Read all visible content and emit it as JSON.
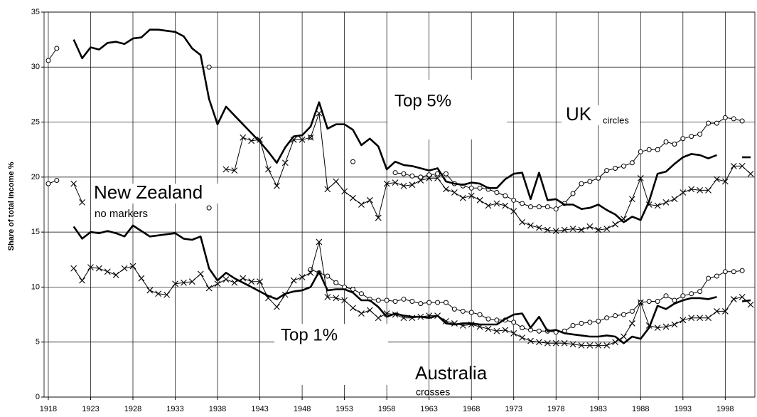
{
  "chart_data": {
    "type": "line",
    "y_label": "Share of total income %",
    "xlim": [
      1917.5,
      2001.5
    ],
    "xticks": [
      1918,
      1923,
      1928,
      1933,
      1938,
      1943,
      1948,
      1953,
      1958,
      1963,
      1968,
      1973,
      1978,
      1983,
      1988,
      1993,
      1998
    ],
    "ylim": [
      0,
      35
    ],
    "yticks": [
      0,
      5,
      10,
      15,
      20,
      25,
      30,
      35
    ],
    "grid": true,
    "annotations": [
      "Top 5%",
      "UK",
      "circles",
      "New Zealand",
      "no markers",
      "Top 1%",
      "Australia",
      "crosses"
    ],
    "series": [
      {
        "color": "#000000",
        "marker": "circle",
        "x": [
          1918,
          1919,
          1920,
          1937,
          1938,
          1949,
          1950,
          1954,
          1955,
          1959,
          1960,
          1961,
          1962,
          1963,
          1964,
          1965,
          1966,
          1967,
          1968,
          1969,
          1970,
          1971,
          1972,
          1973,
          1974,
          1975,
          1976,
          1977,
          1978,
          1979,
          1980,
          1981,
          1982,
          1983,
          1984,
          1985,
          1986,
          1987,
          1988,
          1989,
          1990,
          1991,
          1992,
          1993,
          1994,
          1995,
          1996,
          1997,
          1998,
          1999,
          2000
        ],
        "values": [
          30.6,
          31.7,
          null,
          30.0,
          null,
          23.6,
          null,
          21.4,
          null,
          20.4,
          20.3,
          20.1,
          20.0,
          20.2,
          20.3,
          20.3,
          19.4,
          19.2,
          19.0,
          19.0,
          18.9,
          18.6,
          18.3,
          17.9,
          17.6,
          17.3,
          17.3,
          17.3,
          17.1,
          17.6,
          18.5,
          19.4,
          19.6,
          19.9,
          20.6,
          20.8,
          21.0,
          21.3,
          22.3,
          22.5,
          22.5,
          23.2,
          23.0,
          23.5,
          23.7,
          23.9,
          24.9,
          24.9,
          25.4,
          25.3,
          25.1
        ]
      },
      {
        "color": "#000000",
        "marker": "circle",
        "x": [
          1918,
          1919,
          1920,
          1937,
          1938,
          1949,
          1950,
          1951,
          1952,
          1953,
          1954,
          1955,
          1956,
          1957,
          1958,
          1959,
          1960,
          1961,
          1962,
          1963,
          1964,
          1965,
          1966,
          1967,
          1968,
          1969,
          1970,
          1971,
          1972,
          1973,
          1974,
          1975,
          1976,
          1977,
          1978,
          1979,
          1980,
          1981,
          1982,
          1983,
          1984,
          1985,
          1986,
          1987,
          1988,
          1989,
          1990,
          1991,
          1992,
          1993,
          1994,
          1995,
          1996,
          1997,
          1998,
          1999,
          2000
        ],
        "values": [
          19.4,
          19.7,
          null,
          17.2,
          null,
          11.6,
          11.3,
          11.0,
          10.4,
          10.0,
          9.8,
          9.4,
          8.9,
          8.8,
          8.8,
          8.7,
          8.9,
          8.7,
          8.5,
          8.6,
          8.6,
          8.6,
          8.0,
          7.8,
          7.7,
          7.5,
          7.1,
          7.0,
          7.0,
          6.8,
          6.3,
          6.1,
          6.0,
          6.0,
          5.9,
          6.0,
          6.5,
          6.7,
          6.8,
          6.9,
          7.2,
          7.4,
          7.5,
          7.8,
          8.6,
          8.7,
          8.7,
          9.2,
          8.8,
          9.2,
          9.4,
          9.6,
          10.8,
          11.0,
          11.4,
          11.4,
          11.5
        ]
      },
      {
        "color": "#000000",
        "marker": "none",
        "x": [
          1921,
          1922,
          1923,
          1924,
          1925,
          1926,
          1927,
          1928,
          1929,
          1930,
          1931,
          1932,
          1933,
          1934,
          1935,
          1936,
          1937,
          1938,
          1939,
          1940,
          1941,
          1942,
          1943,
          1944,
          1945,
          1946,
          1947,
          1948,
          1949,
          1950,
          1951,
          1952,
          1953,
          1954,
          1955,
          1956,
          1957,
          1958,
          1959,
          1960,
          1961,
          1962,
          1963,
          1964,
          1965,
          1966,
          1967,
          1968,
          1969,
          1970,
          1971,
          1972,
          1973,
          1974,
          1975,
          1976,
          1977,
          1978,
          1979,
          1980,
          1981,
          1982,
          1983,
          1984,
          1985,
          1986,
          1987,
          1988,
          1989,
          1990,
          1991,
          1992,
          1993,
          1994,
          1995,
          1996,
          1997,
          1998,
          2000,
          2001
        ],
        "values": [
          32.5,
          30.8,
          31.8,
          31.6,
          32.2,
          32.3,
          32.1,
          32.6,
          32.7,
          33.4,
          33.4,
          33.3,
          33.2,
          32.8,
          31.7,
          31.1,
          27.1,
          24.8,
          26.4,
          25.6,
          24.8,
          24.0,
          23.2,
          22.3,
          21.3,
          22.7,
          23.7,
          23.8,
          24.6,
          26.8,
          24.4,
          24.8,
          24.8,
          24.3,
          22.9,
          23.5,
          22.8,
          20.7,
          21.4,
          21.1,
          21.0,
          20.8,
          20.6,
          20.8,
          19.6,
          19.4,
          19.3,
          19.5,
          19.4,
          19.0,
          19.0,
          19.8,
          20.3,
          20.4,
          18.0,
          20.4,
          17.9,
          18.0,
          17.5,
          17.5,
          17.1,
          17.2,
          17.5,
          17.0,
          16.6,
          15.9,
          16.4,
          16.1,
          17.8,
          20.3,
          20.5,
          21.2,
          21.8,
          22.1,
          22.0,
          21.7,
          22.0,
          null,
          21.8,
          21.8
        ]
      },
      {
        "color": "#000000",
        "marker": "none",
        "x": [
          1921,
          1922,
          1923,
          1924,
          1925,
          1926,
          1927,
          1928,
          1929,
          1930,
          1931,
          1932,
          1933,
          1934,
          1935,
          1936,
          1937,
          1938,
          1939,
          1940,
          1941,
          1942,
          1943,
          1944,
          1945,
          1946,
          1947,
          1948,
          1949,
          1950,
          1951,
          1952,
          1953,
          1954,
          1955,
          1956,
          1957,
          1958,
          1959,
          1960,
          1961,
          1962,
          1963,
          1964,
          1965,
          1966,
          1967,
          1968,
          1969,
          1970,
          1971,
          1972,
          1973,
          1974,
          1975,
          1976,
          1977,
          1978,
          1979,
          1980,
          1981,
          1982,
          1983,
          1984,
          1985,
          1986,
          1987,
          1988,
          1989,
          1990,
          1991,
          1992,
          1993,
          1994,
          1995,
          1996,
          1997,
          1998,
          2000,
          2001
        ],
        "values": [
          15.5,
          14.4,
          15.0,
          14.9,
          15.1,
          14.9,
          14.6,
          15.6,
          15.1,
          14.6,
          14.7,
          14.8,
          14.9,
          14.4,
          14.3,
          14.6,
          11.7,
          10.6,
          11.3,
          10.8,
          10.4,
          10.0,
          9.6,
          9.2,
          8.9,
          9.4,
          9.6,
          9.7,
          10.0,
          11.4,
          9.7,
          9.8,
          9.8,
          9.5,
          8.8,
          8.8,
          8.2,
          7.3,
          7.6,
          7.4,
          7.3,
          7.3,
          7.2,
          7.4,
          6.7,
          6.6,
          6.7,
          6.7,
          6.6,
          6.6,
          6.6,
          7.1,
          7.5,
          7.6,
          6.3,
          7.3,
          6.0,
          6.1,
          5.8,
          5.7,
          5.6,
          5.5,
          5.5,
          5.6,
          5.5,
          4.9,
          5.5,
          5.3,
          6.3,
          8.3,
          8.0,
          8.5,
          8.8,
          9.0,
          9.0,
          8.9,
          9.1,
          null,
          8.7,
          8.8
        ]
      },
      {
        "color": "#000000",
        "marker": "cross",
        "x": [
          1921,
          1922,
          1923,
          1939,
          1940,
          1941,
          1942,
          1943,
          1944,
          1945,
          1946,
          1947,
          1948,
          1949,
          1950,
          1951,
          1952,
          1953,
          1954,
          1955,
          1956,
          1957,
          1958,
          1959,
          1960,
          1961,
          1962,
          1963,
          1964,
          1965,
          1966,
          1967,
          1968,
          1969,
          1970,
          1971,
          1972,
          1973,
          1974,
          1975,
          1976,
          1977,
          1978,
          1979,
          1980,
          1981,
          1982,
          1983,
          1984,
          1985,
          1986,
          1987,
          1988,
          1989,
          1990,
          1991,
          1992,
          1993,
          1994,
          1995,
          1996,
          1997,
          1998,
          1999,
          2000,
          2001
        ],
        "values": [
          19.4,
          17.7,
          null,
          20.7,
          20.6,
          23.6,
          23.3,
          23.4,
          20.7,
          19.2,
          21.3,
          23.4,
          23.4,
          23.6,
          25.8,
          18.9,
          19.6,
          18.7,
          18.1,
          17.5,
          17.9,
          16.3,
          19.4,
          19.5,
          19.2,
          19.3,
          19.7,
          19.9,
          19.9,
          18.9,
          18.6,
          18.1,
          18.3,
          17.9,
          17.4,
          17.6,
          17.4,
          16.9,
          15.9,
          15.6,
          15.4,
          15.2,
          15.1,
          15.2,
          15.3,
          15.2,
          15.5,
          15.2,
          15.3,
          15.7,
          16.2,
          18.0,
          19.9,
          17.5,
          17.4,
          17.7,
          18.0,
          18.6,
          18.9,
          18.8,
          18.8,
          19.8,
          19.6,
          21.0,
          21.0,
          20.3
        ]
      },
      {
        "color": "#000000",
        "marker": "cross",
        "x": [
          1921,
          1922,
          1923,
          1924,
          1925,
          1926,
          1927,
          1928,
          1929,
          1930,
          1931,
          1932,
          1933,
          1934,
          1935,
          1936,
          1937,
          1938,
          1939,
          1940,
          1941,
          1942,
          1943,
          1944,
          1945,
          1946,
          1947,
          1948,
          1949,
          1950,
          1951,
          1952,
          1953,
          1954,
          1955,
          1956,
          1957,
          1958,
          1959,
          1960,
          1961,
          1962,
          1963,
          1964,
          1965,
          1966,
          1967,
          1968,
          1969,
          1970,
          1971,
          1972,
          1973,
          1974,
          1975,
          1976,
          1977,
          1978,
          1979,
          1980,
          1981,
          1982,
          1983,
          1984,
          1985,
          1986,
          1987,
          1988,
          1989,
          1990,
          1991,
          1992,
          1993,
          1994,
          1995,
          1996,
          1997,
          1998,
          1999,
          2000,
          2001
        ],
        "values": [
          11.7,
          10.6,
          11.8,
          11.7,
          11.4,
          11.1,
          11.7,
          11.9,
          10.8,
          9.7,
          9.4,
          9.3,
          10.3,
          10.4,
          10.5,
          11.2,
          9.9,
          10.3,
          10.7,
          10.4,
          10.8,
          10.5,
          10.5,
          9.0,
          8.2,
          9.3,
          10.6,
          10.9,
          11.3,
          14.1,
          9.1,
          9.0,
          8.8,
          8.1,
          7.6,
          7.9,
          7.2,
          7.6,
          7.5,
          7.2,
          7.2,
          7.3,
          7.4,
          7.4,
          6.9,
          6.7,
          6.5,
          6.6,
          6.4,
          6.2,
          6.0,
          6.1,
          5.8,
          5.4,
          5.1,
          5.0,
          4.9,
          4.9,
          4.9,
          4.8,
          4.7,
          4.7,
          4.7,
          4.7,
          5.0,
          5.5,
          6.7,
          8.6,
          6.5,
          6.3,
          6.4,
          6.6,
          7.0,
          7.2,
          7.2,
          7.2,
          7.8,
          7.8,
          8.9,
          9.1,
          8.4
        ]
      }
    ]
  }
}
